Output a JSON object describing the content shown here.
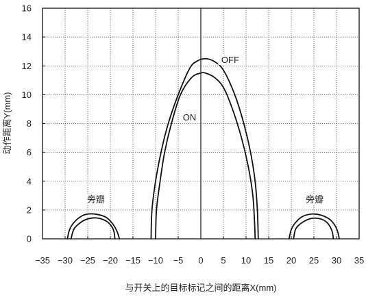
{
  "chart_data": {
    "type": "line",
    "title": "",
    "xlabel": "与开关上的目标标记之间的距离X(mm)",
    "ylabel": "动作距离Y(mm)",
    "xlim": [
      -35,
      35
    ],
    "ylim": [
      0,
      16
    ],
    "xticks": [
      -35,
      -30,
      -25,
      -20,
      -15,
      -10,
      -5,
      0,
      5,
      10,
      15,
      20,
      25,
      30,
      35
    ],
    "yticks": [
      0,
      2,
      4,
      6,
      8,
      10,
      12,
      14,
      16
    ],
    "grid": true,
    "series": [
      {
        "label": "OFF",
        "points": [
          [
            -11,
            0
          ],
          [
            -10.8,
            2
          ],
          [
            -10,
            4
          ],
          [
            -8.8,
            6
          ],
          [
            -7.2,
            8
          ],
          [
            -5,
            10
          ],
          [
            -2.5,
            11.8
          ],
          [
            -1,
            12.3
          ],
          [
            1,
            12.5
          ],
          [
            3,
            12.3
          ],
          [
            5,
            11.7
          ],
          [
            7.5,
            10
          ],
          [
            9.5,
            8
          ],
          [
            11,
            6
          ],
          [
            12,
            4
          ],
          [
            12.5,
            2
          ],
          [
            12.7,
            0
          ]
        ]
      },
      {
        "label": "ON",
        "points": [
          [
            -10,
            0
          ],
          [
            -9.8,
            2
          ],
          [
            -9,
            4
          ],
          [
            -8,
            6
          ],
          [
            -6.5,
            8
          ],
          [
            -4.5,
            10
          ],
          [
            -2,
            11.2
          ],
          [
            0,
            11.5
          ],
          [
            1,
            11.5
          ],
          [
            3,
            11.2
          ],
          [
            5,
            10.5
          ],
          [
            7,
            9
          ],
          [
            9,
            7
          ],
          [
            10.5,
            5
          ],
          [
            11.5,
            3
          ],
          [
            11.9,
            1
          ],
          [
            12,
            0
          ]
        ]
      },
      {
        "label": "旁瓣-left-outer",
        "points": [
          [
            -29.5,
            0
          ],
          [
            -29,
            0.65
          ],
          [
            -28,
            1.15
          ],
          [
            -26.5,
            1.55
          ],
          [
            -25,
            1.72
          ],
          [
            -23,
            1.7
          ],
          [
            -21,
            1.5
          ],
          [
            -19.5,
            1.05
          ],
          [
            -18.5,
            0.5
          ],
          [
            -18,
            0
          ]
        ]
      },
      {
        "label": "旁瓣-left-inner",
        "points": [
          [
            -28.7,
            0
          ],
          [
            -28,
            0.7
          ],
          [
            -26.5,
            1.15
          ],
          [
            -25,
            1.38
          ],
          [
            -23,
            1.45
          ],
          [
            -21,
            1.25
          ],
          [
            -19.8,
            0.9
          ],
          [
            -19.2,
            0.5
          ],
          [
            -19,
            0
          ]
        ]
      },
      {
        "label": "旁瓣-right-outer",
        "points": [
          [
            19.5,
            0
          ],
          [
            20,
            0.65
          ],
          [
            21,
            1.15
          ],
          [
            22.5,
            1.55
          ],
          [
            24.5,
            1.72
          ],
          [
            26.5,
            1.65
          ],
          [
            28.5,
            1.35
          ],
          [
            29.7,
            0.9
          ],
          [
            30.3,
            0.45
          ],
          [
            30.6,
            0
          ]
        ]
      },
      {
        "label": "旁瓣-right-inner",
        "points": [
          [
            20.5,
            0
          ],
          [
            21,
            0.7
          ],
          [
            22.5,
            1.15
          ],
          [
            24.5,
            1.42
          ],
          [
            26.5,
            1.38
          ],
          [
            28,
            1.1
          ],
          [
            29,
            0.55
          ],
          [
            29.3,
            0
          ]
        ]
      }
    ],
    "annotations": [
      {
        "text": "OFF",
        "x": 6.5,
        "y": 12.3
      },
      {
        "text": "ON",
        "x": -2.5,
        "y": 8.3
      },
      {
        "text": "旁瓣",
        "x": -23.2,
        "y": 2.6
      },
      {
        "text": "旁瓣",
        "x": 25.2,
        "y": 2.6
      }
    ]
  }
}
